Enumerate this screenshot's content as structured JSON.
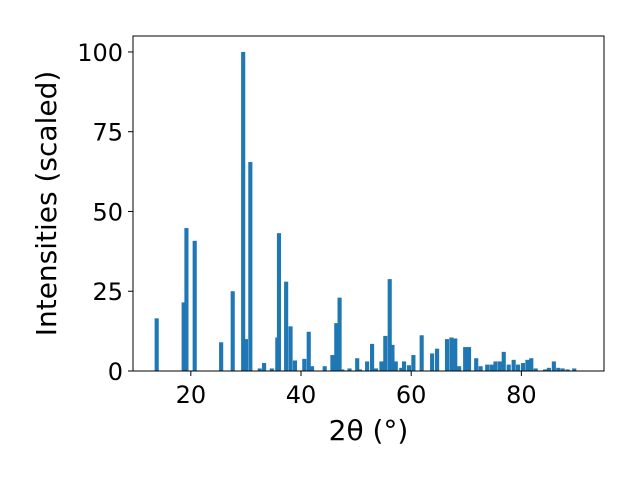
{
  "chart_data": {
    "type": "bar",
    "title": "",
    "xlabel": "2θ (°)",
    "ylabel": "Intensities (scaled)",
    "xlim": [
      9.5,
      95.0
    ],
    "ylim": [
      0,
      105
    ],
    "xticks": [
      20,
      40,
      60,
      80
    ],
    "yticks": [
      0,
      25,
      50,
      75,
      100
    ],
    "grid": false,
    "bar_color": "#1f77b4",
    "bar_width": 0.75,
    "x": [
      13.8,
      18.7,
      19.2,
      20.7,
      25.5,
      27.6,
      29.5,
      30.0,
      30.8,
      32.5,
      33.3,
      34.7,
      35.7,
      36.0,
      37.3,
      38.1,
      38.9,
      40.6,
      41.4,
      42.0,
      44.3,
      45.7,
      46.4,
      47.0,
      47.5,
      48.8,
      50.2,
      50.7,
      52.0,
      52.9,
      53.6,
      54.6,
      55.3,
      56.1,
      56.6,
      57.2,
      58.2,
      58.7,
      59.6,
      60.4,
      61.9,
      63.8,
      64.7,
      66.5,
      67.3,
      68.0,
      68.7,
      69.8,
      70.5,
      71.8,
      72.6,
      73.8,
      74.6,
      75.3,
      76.1,
      76.8,
      77.7,
      78.6,
      79.4,
      80.3,
      81.1,
      81.8,
      82.6,
      84.3,
      85.0,
      85.9,
      86.7,
      87.5,
      88.4,
      89.6
    ],
    "values": [
      16.5,
      21.5,
      44.8,
      40.8,
      9.0,
      25.0,
      100.0,
      10.0,
      65.5,
      0.8,
      2.5,
      0.8,
      10.5,
      43.2,
      28.0,
      14.0,
      3.3,
      3.8,
      12.3,
      1.5,
      1.5,
      5.0,
      15.0,
      23.0,
      0.5,
      0.8,
      4.0,
      0.5,
      3.0,
      8.5,
      0.8,
      3.0,
      11.0,
      28.8,
      8.2,
      3.0,
      1.0,
      3.0,
      1.8,
      5.0,
      11.2,
      5.5,
      7.0,
      10.0,
      10.5,
      10.2,
      1.5,
      7.5,
      7.5,
      4.0,
      1.5,
      2.0,
      2.0,
      3.0,
      3.0,
      6.0,
      2.0,
      3.5,
      2.0,
      2.5,
      3.5,
      4.0,
      0.8,
      0.5,
      1.0,
      3.0,
      1.0,
      0.8,
      0.5,
      0.8
    ]
  }
}
